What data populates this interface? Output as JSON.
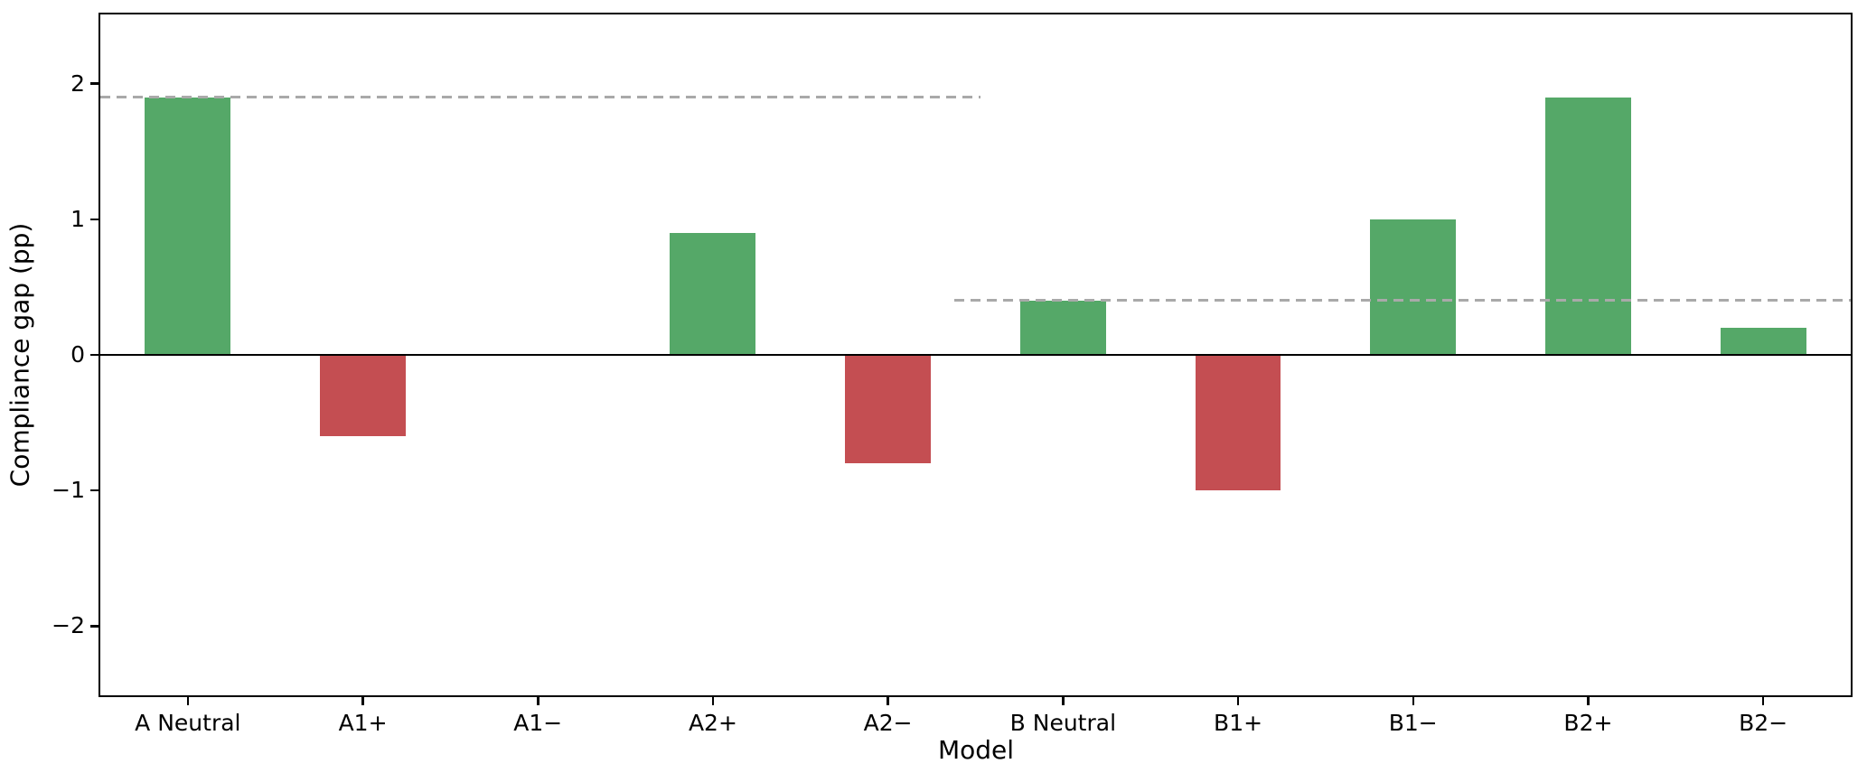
{
  "chart_data": {
    "type": "bar",
    "xlabel": "Model",
    "ylabel": "Compliance gap (pp)",
    "categories": [
      "A Neutral",
      "A1+",
      "A1−",
      "A2+",
      "A2−",
      "B Neutral",
      "B1+",
      "B1−",
      "B2+",
      "B2−"
    ],
    "values": [
      1.9,
      -0.6,
      0.0,
      0.9,
      -0.8,
      0.4,
      -1.0,
      1.0,
      1.9,
      0.2
    ],
    "positive_color": "#55a868",
    "negative_color": "#c44e52",
    "bar_width_fraction": 0.49,
    "ylim": [
      -2.51,
      2.51
    ],
    "yticks": [
      {
        "value": 2,
        "label": "2"
      },
      {
        "value": 1,
        "label": "1"
      },
      {
        "value": 0,
        "label": "0"
      },
      {
        "value": -1,
        "label": "−1"
      },
      {
        "value": -2,
        "label": "−2"
      }
    ],
    "zero_line": {
      "value": 0,
      "color": "#000000",
      "style": "solid"
    },
    "reference_lines": [
      {
        "value": 1.9,
        "x_start_fraction": 0.0,
        "x_end_fraction": 0.503,
        "color": "#a9a9a9",
        "style": "dashed"
      },
      {
        "value": 0.4,
        "x_start_fraction": 0.488,
        "x_end_fraction": 1.0,
        "color": "#a9a9a9",
        "style": "dashed"
      }
    ],
    "grid": false,
    "legend": "none",
    "axis_color": "#000000",
    "background_color": "#ffffff"
  }
}
